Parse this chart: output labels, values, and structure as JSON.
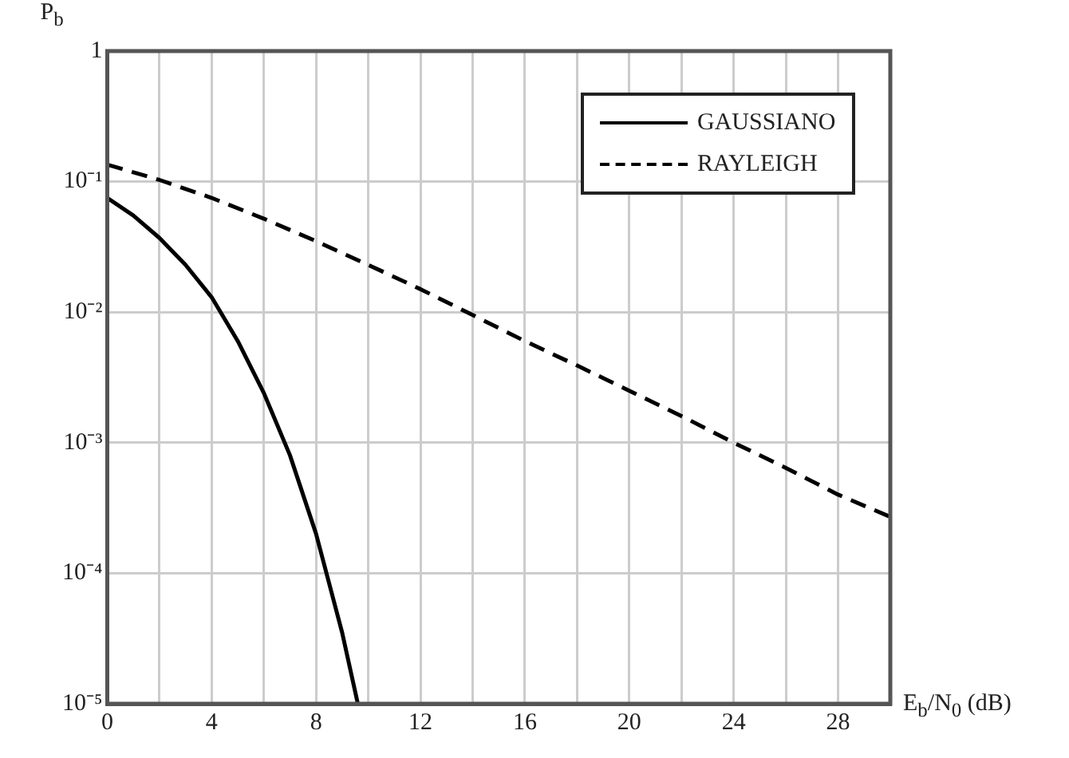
{
  "chart_data": {
    "type": "line",
    "xlabel": "E$_{b}$/N$_{0}$ (dB)",
    "ylabel": "P$_{b}$",
    "xlim": [
      0,
      30
    ],
    "xticks": [
      0,
      {
        "value": 2,
        "label": null
      },
      4,
      {
        "value": 6,
        "label": null
      },
      8,
      {
        "value": 10,
        "label": null
      },
      12,
      {
        "value": 14,
        "label": null
      },
      16,
      {
        "value": 18,
        "label": null
      },
      20,
      {
        "value": 22,
        "label": null
      },
      24,
      {
        "value": 26,
        "label": null
      },
      28
    ],
    "ylim": [
      1e-05,
      1
    ],
    "yticks": [
      {
        "value": 1e-05,
        "label": "10⁻⁵"
      },
      {
        "value": 0.0001,
        "label": "10⁻⁴"
      },
      {
        "value": 0.001,
        "label": "10⁻³"
      },
      {
        "value": 0.01,
        "label": "10⁻²"
      },
      {
        "value": 0.1,
        "label": "10⁻¹"
      },
      1
    ],
    "log": "y",
    "grid": true,
    "legend": "top right",
    "series": [
      {
        "name": "GAUSSIANO",
        "color": "#000000",
        "line_style": "solid",
        "x": [
          0,
          1,
          2,
          3,
          4,
          5,
          6,
          7,
          8,
          9,
          9.6
        ],
        "values": [
          0.075,
          0.055,
          0.037,
          0.023,
          0.013,
          0.006,
          0.0024,
          0.0008,
          0.0002,
          3.5e-05,
          1e-05
        ]
      },
      {
        "name": "RAYLEIGH",
        "color": "#000000",
        "line_style": "dashed",
        "x": [
          0,
          2,
          4,
          6,
          8,
          10,
          12,
          14,
          16,
          18,
          20,
          22,
          24,
          26,
          28,
          30
        ],
        "values": [
          0.135,
          0.103,
          0.075,
          0.052,
          0.035,
          0.023,
          0.015,
          0.0095,
          0.006,
          0.0039,
          0.0025,
          0.0016,
          0.001,
          0.00064,
          0.0004,
          0.00027
        ]
      }
    ]
  }
}
